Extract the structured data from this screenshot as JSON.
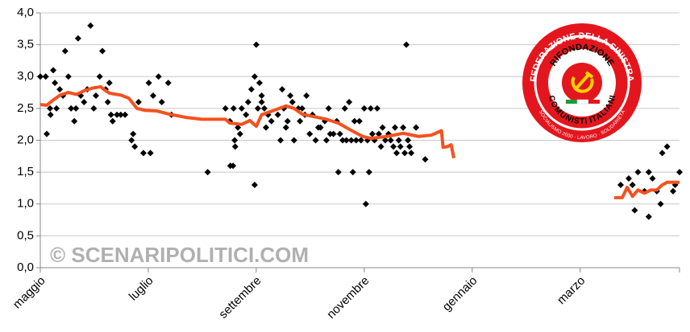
{
  "chart_data": {
    "type": "scatter",
    "xlim": [
      0,
      11.84
    ],
    "xticks": [
      {
        "value": 0,
        "label": "maggio"
      },
      {
        "value": 2,
        "label": "luglio"
      },
      {
        "value": 4,
        "label": "settembre"
      },
      {
        "value": 6,
        "label": "novembre"
      },
      {
        "value": 8,
        "label": "gennaio"
      },
      {
        "value": 10,
        "label": "marzo"
      }
    ],
    "ylim": [
      0,
      4
    ],
    "yticks": [
      {
        "value": 0,
        "label": "0,0"
      },
      {
        "value": 0.5,
        "label": "0,5"
      },
      {
        "value": 1,
        "label": "1,0"
      },
      {
        "value": 1.5,
        "label": "1,5"
      },
      {
        "value": 2,
        "label": "2,0"
      },
      {
        "value": 2.5,
        "label": "2,5"
      },
      {
        "value": 3,
        "label": "3,0"
      },
      {
        "value": 3.5,
        "label": "3,5"
      },
      {
        "value": 4,
        "label": "4,0"
      }
    ],
    "grid": true,
    "points": {
      "color": "#000000",
      "x": [
        0,
        0.1,
        0.12,
        0.18,
        0.19,
        0.24,
        0.27,
        0.3,
        0.36,
        0.42,
        0.46,
        0.52,
        0.57,
        0.63,
        0.66,
        0.7,
        0.75,
        0.81,
        0.87,
        0.93,
        0.99,
        1.03,
        1.1,
        1.15,
        1.21,
        1.25,
        1.28,
        1.31,
        1.34,
        1.42,
        1.49,
        1.57,
        1.69,
        1.72,
        1.75,
        1.82,
        1.91,
        2.01,
        2.04,
        2.09,
        2.19,
        2.25,
        2.37,
        2.43,
        3.1,
        3.43,
        3.51,
        3.52,
        3.57,
        3.58,
        3.6,
        3.61,
        3.66,
        3.7,
        3.73,
        3.81,
        3.85,
        3.91,
        3.97,
        3.97,
        4.0,
        4.03,
        4.06,
        4.1,
        4.1,
        4.15,
        4.18,
        4.22,
        4.28,
        4.4,
        4.45,
        4.48,
        4.51,
        4.55,
        4.58,
        4.63,
        4.67,
        4.7,
        4.78,
        4.81,
        4.85,
        4.9,
        4.93,
        4.99,
        5.04,
        5.1,
        5.15,
        5.19,
        5.27,
        5.3,
        5.34,
        5.37,
        5.43,
        5.49,
        5.52,
        5.55,
        5.6,
        5.64,
        5.67,
        5.72,
        5.76,
        5.79,
        5.82,
        5.85,
        5.91,
        5.94,
        6.0,
        6.03,
        6.06,
        6.09,
        6.12,
        6.15,
        6.19,
        6.24,
        6.27,
        6.31,
        6.34,
        6.39,
        6.45,
        6.49,
        6.54,
        6.57,
        6.6,
        6.64,
        6.67,
        6.72,
        6.75,
        6.78,
        6.81,
        6.84,
        6.87,
        6.96,
        7.13,
        10.75,
        10.9,
        10.97,
        11.01,
        11.07,
        11.19,
        11.27,
        11.27,
        11.34,
        11.42,
        11.49,
        11.52,
        11.61,
        11.72,
        11.76,
        11.84
      ],
      "values": [
        3.0,
        3.0,
        2.1,
        2.5,
        2.4,
        3.1,
        2.9,
        2.5,
        2.8,
        2.7,
        3.4,
        3.0,
        2.5,
        2.3,
        2.5,
        3.6,
        2.7,
        2.6,
        2.8,
        3.8,
        2.5,
        2.7,
        3.0,
        3.4,
        2.8,
        2.6,
        2.9,
        2.4,
        2.3,
        2.4,
        2.4,
        2.4,
        2.0,
        2.1,
        1.9,
        2.6,
        1.8,
        2.9,
        1.8,
        2.7,
        3.0,
        2.6,
        2.9,
        2.4,
        1.5,
        2.5,
        2.3,
        1.6,
        1.6,
        2.5,
        2.0,
        1.9,
        2.2,
        2.1,
        2.5,
        2.4,
        2.6,
        2.8,
        3.0,
        1.3,
        3.5,
        2.5,
        2.9,
        2.6,
        2.7,
        2.5,
        2.2,
        2.4,
        2.3,
        2.4,
        2.0,
        2.8,
        2.5,
        2.2,
        2.3,
        2.7,
        2.6,
        2.0,
        2.5,
        2.3,
        2.5,
        2.4,
        2.7,
        2.1,
        2.4,
        2.0,
        2.2,
        2.2,
        2.3,
        2.0,
        2.5,
        2.1,
        2.1,
        2.3,
        1.5,
        2.1,
        2.0,
        2.5,
        2.0,
        2.6,
        2.0,
        1.5,
        2.3,
        2.0,
        2.3,
        2.0,
        2.5,
        1.0,
        2.0,
        1.5,
        2.5,
        2.1,
        2.0,
        2.5,
        2.1,
        1.9,
        2.2,
        2.0,
        2.1,
        2.0,
        1.9,
        2.2,
        1.8,
        2.0,
        1.9,
        2.2,
        1.8,
        3.5,
        2.0,
        1.9,
        1.8,
        2.2,
        1.7,
        1.3,
        1.4,
        1.3,
        0.9,
        1.5,
        1.2,
        1.5,
        0.8,
        1.4,
        1.2,
        1.0,
        1.8,
        1.9,
        1.2,
        1.3,
        1.5
      ]
    },
    "trend": {
      "color": "#f4511e",
      "x": [
        0,
        0.12,
        0.22,
        0.37,
        0.52,
        0.67,
        0.82,
        0.97,
        1.12,
        1.19,
        1.28,
        1.34,
        1.49,
        1.64,
        1.79,
        1.94,
        2.16,
        2.39,
        2.69,
        2.99,
        3.43,
        3.51,
        3.73,
        3.88,
        4.0,
        4.1,
        4.33,
        4.55,
        4.7,
        4.85,
        5.07,
        5.3,
        5.52,
        5.75,
        5.97,
        6.12,
        6.42,
        6.72,
        7.01,
        7.24,
        7.43,
        7.46,
        7.54,
        7.61,
        7.66,
        null,
        10.63,
        10.78,
        10.87,
        10.97,
        11.07,
        11.19,
        11.31,
        11.42,
        11.52,
        11.61,
        11.84
      ],
      "values": [
        2.56,
        2.55,
        2.62,
        2.71,
        2.75,
        2.72,
        2.78,
        2.82,
        2.84,
        2.79,
        2.74,
        2.73,
        2.71,
        2.66,
        2.5,
        2.47,
        2.46,
        2.41,
        2.36,
        2.33,
        2.33,
        2.27,
        2.25,
        2.31,
        2.22,
        2.4,
        2.47,
        2.54,
        2.5,
        2.41,
        2.37,
        2.33,
        2.27,
        2.16,
        2.06,
        2.03,
        2.06,
        2.11,
        2.06,
        2.08,
        2.15,
        1.89,
        1.9,
        1.93,
        1.72,
        null,
        1.1,
        1.1,
        1.26,
        1.12,
        1.22,
        1.17,
        1.22,
        1.22,
        1.3,
        1.34,
        1.34
      ]
    },
    "watermark": "© SCENARIPOLITICI.COM",
    "logo": {
      "top": "FEDERAZIONE DELLA SINISTRA",
      "name1": "RIFONDAZIONE",
      "name2": "COMUNISTI ITALIANI",
      "motto": "SOCIALISMO 2000 · LAVORO · SOLIDARIETÀ"
    }
  }
}
